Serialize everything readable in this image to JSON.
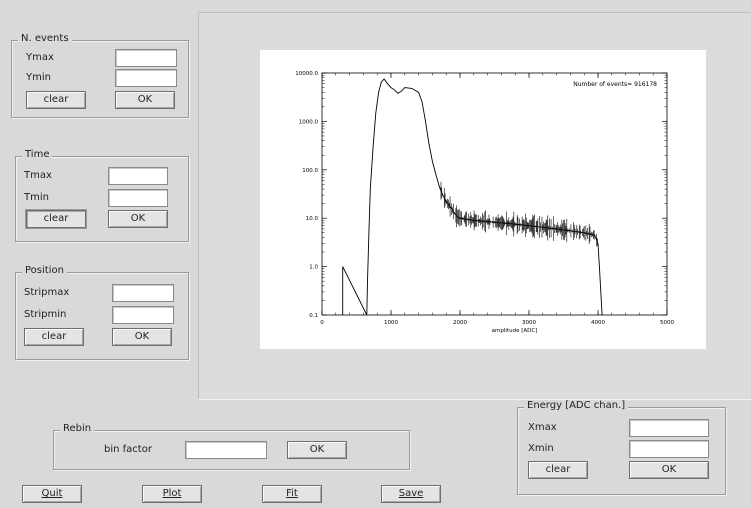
{
  "nevents": {
    "title": "N. events",
    "max_label": "Ymax",
    "min_label": "Ymin",
    "max_value": "",
    "min_value": "",
    "clear_label": "clear",
    "ok_label": "OK"
  },
  "time": {
    "title": "Time",
    "max_label": "Tmax",
    "min_label": "Tmin",
    "max_value": "",
    "min_value": "",
    "clear_label": "clear",
    "ok_label": "OK"
  },
  "position": {
    "title": "Position",
    "max_label": "Stripmax",
    "min_label": "Stripmin",
    "max_value": "",
    "min_value": "",
    "clear_label": "clear",
    "ok_label": "OK"
  },
  "rebin": {
    "title": "Rebin",
    "factor_label": "bin factor",
    "factor_value": "",
    "ok_label": "OK"
  },
  "energy": {
    "title": "Energy [ADC chan.]",
    "max_label": "Xmax",
    "min_label": "Xmin",
    "max_value": "",
    "min_value": "",
    "clear_label": "clear",
    "ok_label": "OK"
  },
  "actions": {
    "quit": "Quit",
    "plot": "Plot",
    "fit": "Fit",
    "save": "Save"
  },
  "chart_data": {
    "type": "line",
    "ylog": true,
    "xlim": [
      0,
      5000
    ],
    "ylim": [
      0.1,
      10000
    ],
    "xlabel": "amplitude [ADC]",
    "ylabel": "",
    "xticks": [
      "0",
      "1000",
      "2000",
      "3000",
      "4000",
      "5000"
    ],
    "yticks": [
      "0.1",
      "1.0",
      "10.0",
      "100.0",
      "1000.0",
      "10000.0"
    ],
    "annotation": "Number of events= 916178",
    "series": [
      {
        "x": [
          300,
          300,
          650,
          660,
          680,
          700,
          740,
          780,
          820,
          860,
          900,
          950,
          1000,
          1050,
          1100,
          1150,
          1200,
          1300,
          1400,
          1450,
          1500,
          1550,
          1600,
          1650,
          1700,
          1750,
          1800,
          1850,
          1900,
          1950,
          2000,
          2100,
          2200,
          2400,
          2600,
          2800,
          3000,
          3200,
          3400,
          3600,
          3800,
          3950,
          4000,
          4020,
          4040,
          4060
        ],
        "y": [
          0.1,
          1,
          0.1,
          0.5,
          5,
          40,
          300,
          1500,
          4000,
          6500,
          7500,
          6000,
          5000,
          4500,
          3800,
          4200,
          5000,
          4800,
          4000,
          2500,
          1000,
          350,
          150,
          80,
          45,
          30,
          22,
          18,
          14,
          11,
          10,
          9.5,
          9,
          8.5,
          8,
          7.5,
          7,
          6.5,
          6,
          5.5,
          5,
          4.5,
          3,
          1,
          0.3,
          0.1
        ]
      }
    ]
  }
}
